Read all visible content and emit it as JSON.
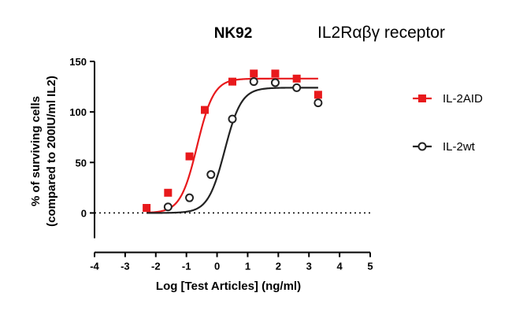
{
  "chart_data": {
    "type": "scatter",
    "title": "NK92",
    "subtitle": "IL2Rαβγ receptor",
    "xlabel": "Log [Test Articles] (ng/ml)",
    "ylabel_line1": "% of surviving cells",
    "ylabel_line2": "(compared to 200IU/ml IL2)",
    "xlim": [
      -4,
      5
    ],
    "ylim": [
      -25,
      150
    ],
    "xticks": [
      "-4",
      "-3",
      "-2",
      "-1",
      "0",
      "1",
      "2",
      "3",
      "4",
      "5"
    ],
    "yticks": [
      "0",
      "50",
      "100",
      "150"
    ],
    "baseline": 0,
    "legend_position": "right",
    "series": [
      {
        "name": "IL-2AID",
        "color": "#e8191c",
        "marker": "square-filled",
        "x": [
          -2.3,
          -1.6,
          -0.9,
          -0.4,
          0.5,
          1.2,
          1.9,
          2.6,
          3.3
        ],
        "y": [
          5,
          20,
          56,
          102,
          130,
          138,
          138,
          133,
          117
        ],
        "fit": {
          "bottom": 0,
          "top": 133,
          "logEC50": -0.65,
          "hill": 1.6,
          "x_range": [
            -2.3,
            3.3
          ]
        }
      },
      {
        "name": "IL-2wt",
        "color": "#222222",
        "marker": "circle-open",
        "x": [
          -2.3,
          -1.6,
          -0.9,
          -0.2,
          0.5,
          1.2,
          1.9,
          2.6,
          3.3
        ],
        "y": [
          null,
          6,
          15,
          38,
          93,
          130,
          129,
          124,
          109
        ],
        "fit": {
          "bottom": 0,
          "top": 124,
          "logEC50": 0.25,
          "hill": 1.6,
          "x_range": [
            -2.3,
            3.3
          ]
        }
      }
    ]
  }
}
